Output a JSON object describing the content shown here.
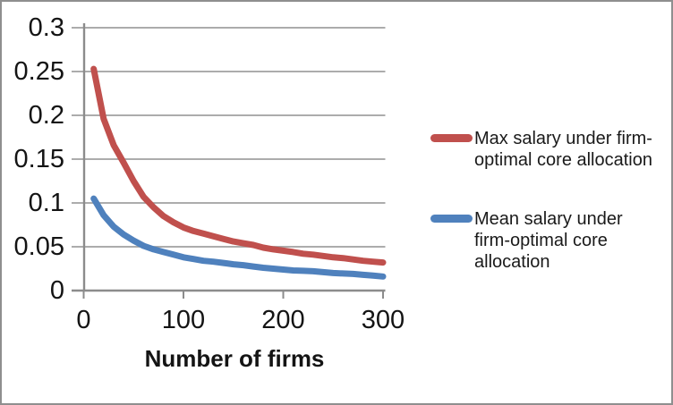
{
  "colors": {
    "background": "#ffffff",
    "frame_border": "#8f8f8f",
    "gridline": "#a1a1a1",
    "axis": "#8c8c8c",
    "text": "#141414",
    "series_red": "#C0504D",
    "series_blue": "#4F81BD"
  },
  "legend": {
    "items": [
      {
        "color": "#C0504D",
        "lines": [
          "Max salary under firm-",
          "optimal core allocation"
        ]
      },
      {
        "color": "#4F81BD",
        "lines": [
          "Mean salary under",
          "firm-optimal core",
          "allocation"
        ]
      }
    ]
  },
  "chart_data": {
    "type": "line",
    "title": "",
    "xlabel": "Number of firms",
    "ylabel": "",
    "grid": true,
    "legend_position": "right",
    "xlim": [
      0,
      300
    ],
    "ylim": [
      0,
      0.3
    ],
    "x_ticks": {
      "values": [
        0,
        100,
        200,
        300
      ],
      "labels": [
        "0",
        "100",
        "200",
        "300"
      ]
    },
    "y_ticks": {
      "values": [
        0,
        0.05,
        0.1,
        0.15,
        0.2,
        0.25,
        0.3
      ],
      "labels": [
        "0",
        "0.05",
        "0.1",
        "0.15",
        "0.2",
        "0.25",
        "0.3"
      ]
    },
    "x": [
      10,
      20,
      30,
      40,
      50,
      60,
      70,
      80,
      90,
      100,
      110,
      120,
      130,
      140,
      150,
      160,
      170,
      180,
      190,
      200,
      210,
      220,
      230,
      240,
      250,
      260,
      270,
      280,
      290,
      300
    ],
    "series": [
      {
        "name": "Max salary under firm-optimal core allocation",
        "color": "#C0504D",
        "values": [
          0.253,
          0.196,
          0.166,
          0.146,
          0.125,
          0.107,
          0.095,
          0.085,
          0.078,
          0.072,
          0.068,
          0.065,
          0.062,
          0.059,
          0.056,
          0.054,
          0.052,
          0.049,
          0.047,
          0.0455,
          0.044,
          0.042,
          0.041,
          0.0395,
          0.038,
          0.037,
          0.0355,
          0.034,
          0.033,
          0.032
        ]
      },
      {
        "name": "Mean salary under firm-optimal core allocation",
        "color": "#4F81BD",
        "values": [
          0.105,
          0.086,
          0.073,
          0.064,
          0.057,
          0.051,
          0.047,
          0.044,
          0.041,
          0.038,
          0.036,
          0.034,
          0.033,
          0.0315,
          0.03,
          0.029,
          0.0275,
          0.026,
          0.025,
          0.024,
          0.023,
          0.0225,
          0.022,
          0.021,
          0.02,
          0.0195,
          0.019,
          0.018,
          0.017,
          0.016
        ]
      }
    ]
  }
}
